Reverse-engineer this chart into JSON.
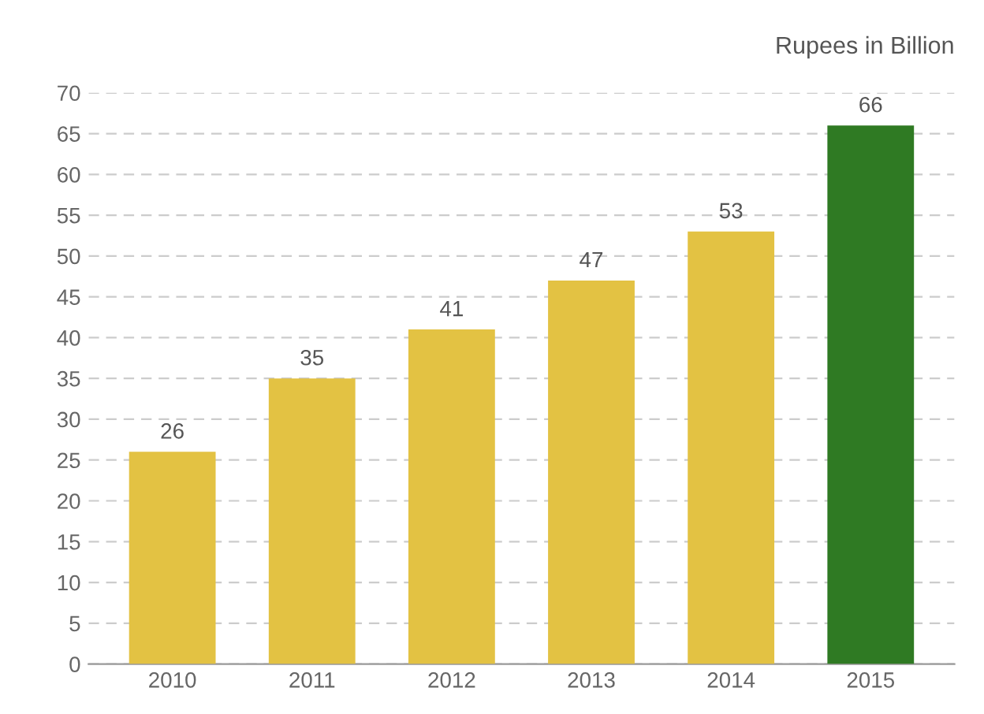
{
  "chart_data": {
    "type": "bar",
    "categories": [
      "2010",
      "2011",
      "2012",
      "2013",
      "2014",
      "2015"
    ],
    "values": [
      26,
      35,
      41,
      47,
      53,
      66
    ],
    "colors": [
      "#e3c243",
      "#e3c243",
      "#e3c243",
      "#e3c243",
      "#e3c243",
      "#2f7a23"
    ],
    "ylabel": "Rupees in Billion",
    "ylim": [
      0,
      70
    ],
    "yticks": [
      0,
      5,
      10,
      15,
      20,
      25,
      30,
      35,
      40,
      45,
      50,
      55,
      60,
      65,
      70
    ],
    "grid": "y",
    "data_labels": true
  }
}
